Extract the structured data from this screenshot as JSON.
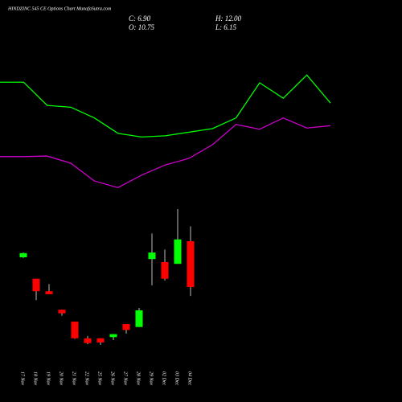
{
  "chart_data": [
    {
      "type": "candlestick",
      "title": "HINDZINC 545 CE Options Chart MunafaSutra.com",
      "ohlc_labels": {
        "close": "C: 6.90",
        "high": "H: 12.00",
        "open": "O: 10.75",
        "low": "L: 6.15"
      },
      "categories": [
        "17 Nov",
        "18 Nov",
        "19 Nov",
        "20 Nov",
        "21 Nov",
        "22 Nov",
        "25 Nov",
        "26 Nov",
        "27 Nov",
        "28 Nov",
        "29 Nov",
        "02 Dec",
        "03 Dec",
        "04 Dec"
      ],
      "open": [
        9.4,
        7.6,
        6.55,
        5.0,
        4.0,
        2.6,
        2.6,
        2.7,
        3.8,
        3.55,
        9.25,
        9.0,
        8.85,
        10.75
      ],
      "high": [
        9.8,
        7.6,
        7.15,
        5.0,
        4.0,
        2.8,
        2.6,
        2.95,
        3.8,
        5.15,
        11.4,
        10.05,
        13.45,
        12.0
      ],
      "low": [
        9.35,
        5.8,
        6.3,
        4.5,
        2.55,
        2.1,
        2.05,
        2.45,
        3.0,
        3.55,
        7.05,
        7.45,
        8.85,
        6.15
      ],
      "close": [
        9.75,
        6.55,
        6.3,
        4.7,
        2.6,
        2.2,
        2.25,
        2.95,
        3.3,
        4.95,
        9.8,
        7.6,
        10.9,
        6.9
      ],
      "up_color": "#00ff00",
      "down_color": "#ff0000",
      "ylim": [
        0,
        30
      ]
    },
    {
      "type": "line",
      "categories": [
        null,
        null,
        null,
        null,
        null,
        null,
        null,
        null,
        null,
        null,
        null,
        null,
        null,
        null,
        null
      ],
      "series": [
        {
          "color": "#00ff00",
          "values": [
            24.1,
            24.1,
            22.15,
            22.0,
            21.1,
            19.8,
            19.5,
            19.6,
            19.9,
            20.2,
            21.1,
            24.05,
            22.75,
            24.7,
            22.35
          ]
        },
        {
          "color": "#cc00cc",
          "values": [
            17.85,
            17.85,
            17.9,
            17.3,
            15.8,
            15.25,
            16.3,
            17.15,
            17.7,
            18.85,
            20.55,
            20.15,
            21.1,
            20.25,
            20.45
          ]
        }
      ],
      "ylim": [
        0,
        30
      ]
    }
  ]
}
